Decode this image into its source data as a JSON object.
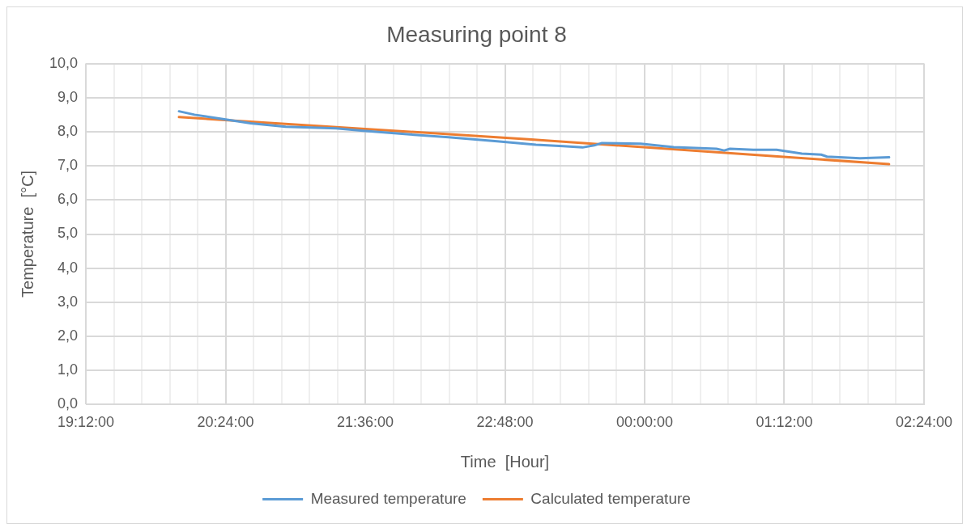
{
  "chart_data": {
    "type": "line",
    "title": "Measuring point 8",
    "xlabel": "Time  [Hour]",
    "ylabel": "Temperature  [°C]",
    "xlim": [
      "2000-01-01T19:12",
      "2000-01-02T02:24"
    ],
    "xticks": [
      {
        "value": "2000-01-01T19:12",
        "label": "19:12:00"
      },
      {
        "value": "2000-01-01T19:26:24",
        "label": null
      },
      {
        "value": "2000-01-01T19:40:48",
        "label": null
      },
      {
        "value": "2000-01-01T19:55:12",
        "label": null
      },
      {
        "value": "2000-01-01T20:09:36",
        "label": null
      },
      {
        "value": "2000-01-01T20:24",
        "label": "20:24:00"
      },
      {
        "value": "2000-01-01T20:38:24",
        "label": null
      },
      {
        "value": "2000-01-01T20:52:48",
        "label": null
      },
      {
        "value": "2000-01-01T21:07:12",
        "label": null
      },
      {
        "value": "2000-01-01T21:21:36",
        "label": null
      },
      {
        "value": "2000-01-01T21:36",
        "label": "21:36:00"
      },
      {
        "value": "2000-01-01T21:50:24",
        "label": null
      },
      {
        "value": "2000-01-01T22:04:48",
        "label": null
      },
      {
        "value": "2000-01-01T22:19:12",
        "label": null
      },
      {
        "value": "2000-01-01T22:33:36",
        "label": null
      },
      {
        "value": "2000-01-01T22:48",
        "label": "22:48:00"
      },
      {
        "value": "2000-01-01T23:02:24",
        "label": null
      },
      {
        "value": "2000-01-01T23:16:48",
        "label": null
      },
      {
        "value": "2000-01-01T23:31:12",
        "label": null
      },
      {
        "value": "2000-01-01T23:45:36",
        "label": null
      },
      {
        "value": "2000-01-02T00:00",
        "label": "00:00:00"
      },
      {
        "value": "2000-01-02T00:14:24",
        "label": null
      },
      {
        "value": "2000-01-02T00:28:48",
        "label": null
      },
      {
        "value": "2000-01-02T00:43:12",
        "label": null
      },
      {
        "value": "2000-01-02T00:57:36",
        "label": null
      },
      {
        "value": "2000-01-02T01:12",
        "label": "01:12:00"
      },
      {
        "value": "2000-01-02T01:26:24",
        "label": null
      },
      {
        "value": "2000-01-02T01:40:48",
        "label": null
      },
      {
        "value": "2000-01-02T01:55:12",
        "label": null
      },
      {
        "value": "2000-01-02T02:09:36",
        "label": null
      },
      {
        "value": "2000-01-02T02:24",
        "label": "02:24:00"
      }
    ],
    "ylim": [
      0,
      10
    ],
    "yticks": [
      {
        "value": 0,
        "label": "0,0"
      },
      {
        "value": 1,
        "label": "1,0"
      },
      {
        "value": 2,
        "label": "2,0"
      },
      {
        "value": 3,
        "label": "3,0"
      },
      {
        "value": 4,
        "label": "4,0"
      },
      {
        "value": 5,
        "label": "5,0"
      },
      {
        "value": 6,
        "label": "6,0"
      },
      {
        "value": 7,
        "label": "7,0"
      },
      {
        "value": 8,
        "label": "8,0"
      },
      {
        "value": 9,
        "label": "9,0"
      },
      {
        "value": 10,
        "label": "10,0"
      }
    ],
    "grid": true,
    "legend": "bottom",
    "marker": "none",
    "line_style": "solid",
    "series": [
      {
        "name": "Measured temperature",
        "color": "#5b9bd5",
        "x": [
          "2000-01-01T20:00",
          "2000-01-01T20:08",
          "2000-01-01T20:24",
          "2000-01-01T20:37",
          "2000-01-01T20:55",
          "2000-01-01T21:21",
          "2000-01-01T21:35",
          "2000-01-01T21:59",
          "2000-01-01T22:19",
          "2000-01-01T22:44",
          "2000-01-01T23:04",
          "2000-01-01T23:18",
          "2000-01-01T23:28",
          "2000-01-01T23:34",
          "2000-01-01T23:38",
          "2000-01-01T23:58",
          "2000-01-02T00:15",
          "2000-01-02T00:37",
          "2000-01-02T00:41",
          "2000-01-02T00:44",
          "2000-01-02T00:56",
          "2000-01-02T01:08",
          "2000-01-02T01:21",
          "2000-01-02T01:31",
          "2000-01-02T01:34",
          "2000-01-02T01:51",
          "2000-01-02T02:06"
        ],
        "values": [
          8.6,
          8.5,
          8.36,
          8.25,
          8.15,
          8.1,
          8.03,
          7.92,
          7.84,
          7.72,
          7.62,
          7.58,
          7.54,
          7.6,
          7.67,
          7.65,
          7.55,
          7.5,
          7.45,
          7.5,
          7.47,
          7.47,
          7.36,
          7.33,
          7.27,
          7.22,
          7.25
        ]
      },
      {
        "name": "Calculated temperature",
        "color": "#ed7d31",
        "x": [
          "2000-01-01T20:00",
          "2000-01-01T23:00",
          "2000-01-02T02:06"
        ],
        "values": [
          8.43,
          7.78,
          7.05
        ]
      }
    ]
  }
}
